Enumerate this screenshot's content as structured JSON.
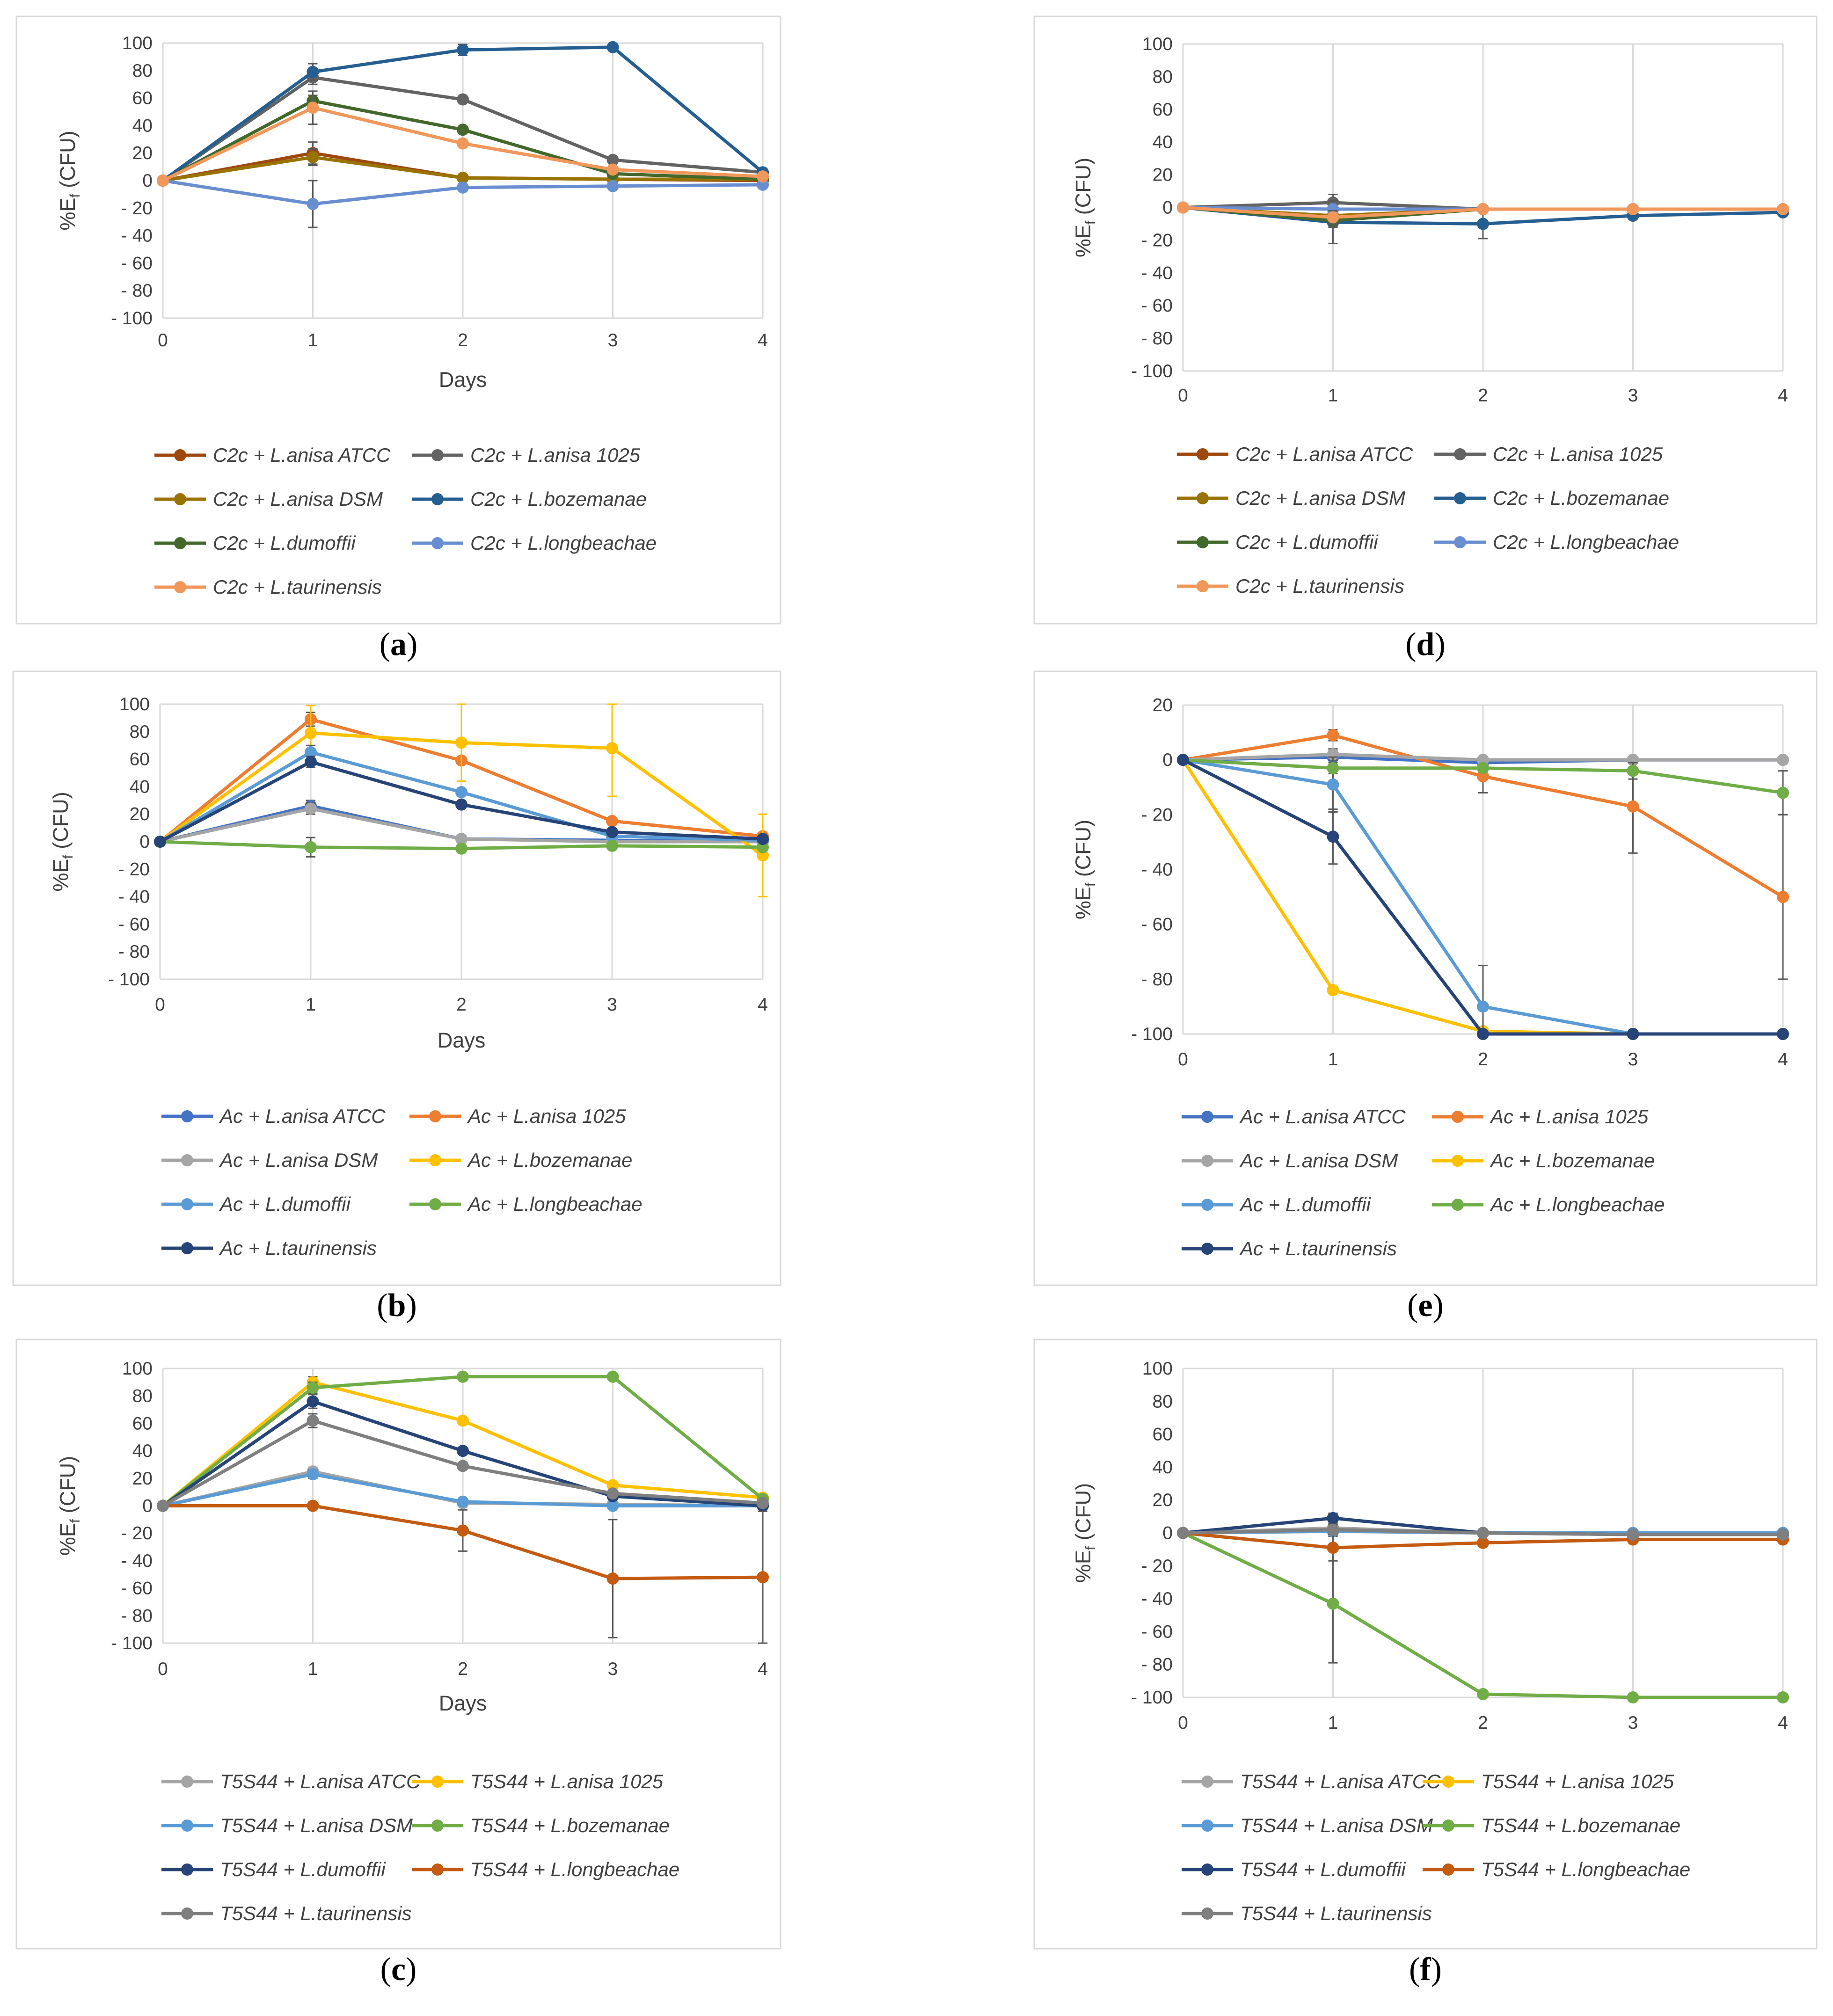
{
  "figure": {
    "days_label": "Days",
    "ylabel_prefix": "%E",
    "ylabel_sub": "f",
    "ylabel_suffix": " (CFU)"
  },
  "chart_data": [
    {
      "id": "a",
      "caption": "a",
      "type": "line",
      "x": [
        0,
        1,
        2,
        3,
        4
      ],
      "xlabel": "Days",
      "ylabel": "%Ef (CFU)",
      "ylim": [
        -100,
        100
      ],
      "yticks": [
        100,
        80,
        60,
        40,
        20,
        0,
        -20,
        -40,
        -60,
        -80,
        -100
      ],
      "grid": "vertical",
      "series": [
        {
          "name": "C2c + L.anisa ATCC",
          "color": "#9E480E",
          "values": [
            0,
            20,
            2,
            1,
            0
          ],
          "errors": [
            0,
            8,
            0,
            0,
            0
          ]
        },
        {
          "name": "C2c + L.anisa 1025",
          "color": "#636363",
          "values": [
            0,
            75,
            59,
            15,
            6
          ],
          "errors": [
            0,
            5,
            0,
            0,
            0
          ]
        },
        {
          "name": "C2c + L.anisa DSM",
          "color": "#997300",
          "values": [
            0,
            17,
            2,
            1,
            1
          ],
          "errors": [
            0,
            6,
            0,
            0,
            0
          ]
        },
        {
          "name": "C2c + L.bozemanae",
          "color": "#255E91",
          "values": [
            0,
            79,
            95,
            97,
            6
          ],
          "errors": [
            0,
            6,
            4,
            0,
            0
          ]
        },
        {
          "name": "C2c + L.dumoffii",
          "color": "#43682B",
          "values": [
            0,
            58,
            37,
            5,
            1
          ],
          "errors": [
            0,
            4,
            0,
            0,
            0
          ]
        },
        {
          "name": "C2c + L.longbeachae",
          "color": "#698ED0",
          "values": [
            0,
            -17,
            -5,
            -4,
            -3
          ],
          "errors": [
            0,
            17,
            0,
            0,
            0
          ]
        },
        {
          "name": "C2c + L.taurinensis",
          "color": "#F1975A",
          "values": [
            0,
            53,
            27,
            8,
            3
          ],
          "errors": [
            0,
            12,
            0,
            0,
            0
          ]
        }
      ]
    },
    {
      "id": "b",
      "caption": "b",
      "type": "line",
      "x": [
        0,
        1,
        2,
        3,
        4
      ],
      "xlabel": "Days",
      "ylabel": "%Ef (CFU)",
      "ylim": [
        -100,
        100
      ],
      "yticks": [
        100,
        80,
        60,
        40,
        20,
        0,
        -20,
        -40,
        -60,
        -80,
        -100
      ],
      "grid": "vertical",
      "series": [
        {
          "name": "Ac + L.anisa ATCC",
          "color": "#4472C4",
          "values": [
            0,
            26,
            2,
            1,
            0
          ],
          "errors": [
            0,
            4,
            0,
            0,
            0
          ]
        },
        {
          "name": "Ac + L.anisa 1025",
          "color": "#ED7D31",
          "values": [
            0,
            89,
            59,
            15,
            4
          ],
          "errors": [
            0,
            5,
            0,
            0,
            0
          ]
        },
        {
          "name": "Ac + L.anisa DSM",
          "color": "#A5A5A5",
          "values": [
            0,
            24,
            2,
            0,
            0
          ],
          "errors": [
            0,
            4,
            0,
            0,
            0
          ]
        },
        {
          "name": "Ac + L.bozemanae",
          "color": "#FFC000",
          "values": [
            0,
            79,
            72,
            68,
            -10
          ],
          "errors": [
            0,
            20,
            28,
            35,
            30
          ]
        },
        {
          "name": "Ac + L.dumoffii",
          "color": "#5B9BD5",
          "values": [
            0,
            65,
            36,
            4,
            1
          ],
          "errors": [
            0,
            5,
            0,
            0,
            0
          ]
        },
        {
          "name": "Ac + L.longbeachae",
          "color": "#70AD47",
          "values": [
            0,
            -4,
            -5,
            -3,
            -4
          ],
          "errors": [
            0,
            7,
            0,
            0,
            0
          ]
        },
        {
          "name": "Ac + L.taurinensis",
          "color": "#264478",
          "values": [
            0,
            58,
            27,
            7,
            2
          ],
          "errors": [
            0,
            4,
            0,
            0,
            0
          ]
        }
      ]
    },
    {
      "id": "c",
      "caption": "c",
      "type": "line",
      "x": [
        0,
        1,
        2,
        3,
        4
      ],
      "xlabel": "Days",
      "ylabel": "%Ef (CFU)",
      "ylim": [
        -100,
        100
      ],
      "yticks": [
        100,
        80,
        60,
        40,
        20,
        0,
        -20,
        -40,
        -60,
        -80,
        -100
      ],
      "grid": "vertical",
      "series": [
        {
          "name": "T5S44 + L.anisa ATCC",
          "color": "#A5A5A5",
          "values": [
            0,
            25,
            2,
            1,
            0
          ],
          "errors": [
            0,
            3,
            0,
            0,
            0
          ]
        },
        {
          "name": "T5S44 + L.anisa 1025",
          "color": "#FFC000",
          "values": [
            0,
            90,
            62,
            15,
            6
          ],
          "errors": [
            0,
            4,
            0,
            0,
            0
          ]
        },
        {
          "name": "T5S44 + L.anisa DSM",
          "color": "#5B9BD5",
          "values": [
            0,
            23,
            3,
            0,
            0
          ],
          "errors": [
            0,
            3,
            0,
            0,
            0
          ]
        },
        {
          "name": "T5S44 + L.bozemanae",
          "color": "#70AD47",
          "values": [
            0,
            86,
            94,
            94,
            5
          ],
          "errors": [
            0,
            4,
            0,
            0,
            0
          ]
        },
        {
          "name": "T5S44 + L.dumoffii",
          "color": "#264478",
          "values": [
            0,
            76,
            40,
            7,
            0
          ],
          "errors": [
            0,
            5,
            0,
            0,
            0
          ]
        },
        {
          "name": "T5S44 + L.longbeachae",
          "color": "#C55A11",
          "values": [
            0,
            0,
            -18,
            -53,
            -52
          ],
          "errors": [
            0,
            0,
            15,
            43,
            48
          ]
        },
        {
          "name": "T5S44 + L.taurinensis",
          "color": "#7F7F7F",
          "values": [
            0,
            62,
            29,
            9,
            2
          ],
          "errors": [
            0,
            5,
            0,
            0,
            0
          ]
        }
      ]
    },
    {
      "id": "d",
      "caption": "d",
      "type": "line",
      "x": [
        0,
        1,
        2,
        3,
        4
      ],
      "xlabel": "",
      "ylabel": "%Ef (CFU)",
      "ylim": [
        -100,
        100
      ],
      "yticks": [
        100,
        80,
        60,
        40,
        20,
        0,
        -20,
        -40,
        -60,
        -80,
        -100
      ],
      "grid": "vertical",
      "series": [
        {
          "name": "C2c + L.anisa ATCC",
          "color": "#9E480E",
          "values": [
            0,
            -7,
            -1,
            -1,
            -1
          ],
          "errors": [
            0,
            5,
            0,
            0,
            0
          ]
        },
        {
          "name": "C2c + L.anisa 1025",
          "color": "#636363",
          "values": [
            0,
            3,
            -1,
            -1,
            -1
          ],
          "errors": [
            0,
            5,
            0,
            0,
            0
          ]
        },
        {
          "name": "C2c + L.anisa DSM",
          "color": "#997300",
          "values": [
            0,
            -5,
            -1,
            -1,
            -1
          ],
          "errors": [
            0,
            5,
            0,
            0,
            0
          ]
        },
        {
          "name": "C2c + L.bozemanae",
          "color": "#255E91",
          "values": [
            0,
            -9,
            -10,
            -5,
            -3
          ],
          "errors": [
            0,
            13,
            9,
            2,
            0
          ]
        },
        {
          "name": "C2c + L.dumoffii",
          "color": "#43682B",
          "values": [
            0,
            -8,
            -1,
            -1,
            -1
          ],
          "errors": [
            0,
            4,
            0,
            0,
            0
          ]
        },
        {
          "name": "C2c + L.longbeachae",
          "color": "#698ED0",
          "values": [
            0,
            -1,
            -1,
            -1,
            -1
          ],
          "errors": [
            0,
            3,
            0,
            0,
            0
          ]
        },
        {
          "name": "C2c + L.taurinensis",
          "color": "#F1975A",
          "values": [
            0,
            -6,
            -1,
            -1,
            -1
          ],
          "errors": [
            0,
            4,
            0,
            0,
            0
          ]
        }
      ]
    },
    {
      "id": "e",
      "caption": "e",
      "type": "line",
      "x": [
        0,
        1,
        2,
        3,
        4
      ],
      "xlabel": "",
      "ylabel": "%Ef (CFU)",
      "ylim": [
        -100,
        20
      ],
      "yticks": [
        20,
        0,
        -20,
        -40,
        -60,
        -80,
        -100
      ],
      "grid": "vertical",
      "series": [
        {
          "name": "Ac + L.anisa ATCC",
          "color": "#4472C4",
          "values": [
            0,
            1,
            -1,
            0,
            0
          ],
          "errors": [
            0,
            2,
            0,
            0,
            0
          ]
        },
        {
          "name": "Ac + L.anisa 1025",
          "color": "#ED7D31",
          "values": [
            0,
            9,
            -6,
            -17,
            -50
          ],
          "errors": [
            0,
            2,
            6,
            17,
            30
          ]
        },
        {
          "name": "Ac + L.anisa DSM",
          "color": "#A5A5A5",
          "values": [
            0,
            2,
            0,
            0,
            0
          ],
          "errors": [
            0,
            2,
            0,
            0,
            0
          ]
        },
        {
          "name": "Ac + L.bozemanae",
          "color": "#FFC000",
          "values": [
            0,
            -84,
            -99,
            -100,
            -100
          ],
          "errors": [
            0,
            0,
            0,
            0,
            0
          ]
        },
        {
          "name": "Ac + L.dumoffii",
          "color": "#5B9BD5",
          "values": [
            0,
            -9,
            -90,
            -100,
            -100
          ],
          "errors": [
            0,
            10,
            15,
            0,
            0
          ]
        },
        {
          "name": "Ac + L.longbeachae",
          "color": "#70AD47",
          "values": [
            0,
            -3,
            -3,
            -4,
            -12
          ],
          "errors": [
            0,
            2,
            0,
            3,
            8
          ]
        },
        {
          "name": "Ac + L.taurinensis",
          "color": "#264478",
          "values": [
            0,
            -28,
            -100,
            -100,
            -100
          ],
          "errors": [
            0,
            10,
            0,
            0,
            0
          ]
        }
      ]
    },
    {
      "id": "f",
      "caption": "f",
      "type": "line",
      "x": [
        0,
        1,
        2,
        3,
        4
      ],
      "xlabel": "",
      "ylabel": "%Ef (CFU)",
      "ylim": [
        -100,
        100
      ],
      "yticks": [
        100,
        80,
        60,
        40,
        20,
        0,
        -20,
        -40,
        -60,
        -80,
        -100
      ],
      "grid": "vertical",
      "series": [
        {
          "name": "T5S44 + L.anisa ATCC",
          "color": "#A5A5A5",
          "values": [
            0,
            3,
            0,
            0,
            0
          ],
          "errors": [
            0,
            3,
            0,
            0,
            0
          ]
        },
        {
          "name": "T5S44 + L.anisa 1025",
          "color": "#FFC000",
          "values": [
            0,
            1,
            0,
            0,
            0
          ],
          "errors": [
            0,
            3,
            0,
            0,
            0
          ]
        },
        {
          "name": "T5S44 + L.anisa DSM",
          "color": "#5B9BD5",
          "values": [
            0,
            1,
            0,
            0,
            0
          ],
          "errors": [
            0,
            3,
            0,
            0,
            0
          ]
        },
        {
          "name": "T5S44 + L.bozemanae",
          "color": "#70AD47",
          "values": [
            0,
            -43,
            -98,
            -100,
            -100
          ],
          "errors": [
            0,
            36,
            0,
            0,
            0
          ]
        },
        {
          "name": "T5S44 + L.dumoffii",
          "color": "#264478",
          "values": [
            0,
            9,
            0,
            -1,
            -1
          ],
          "errors": [
            0,
            3,
            0,
            0,
            0
          ]
        },
        {
          "name": "T5S44 + L.longbeachae",
          "color": "#C55A11",
          "values": [
            0,
            -9,
            -6,
            -4,
            -4
          ],
          "errors": [
            0,
            8,
            2,
            0,
            0
          ]
        },
        {
          "name": "T5S44 + L.taurinensis",
          "color": "#7F7F7F",
          "values": [
            0,
            2,
            0,
            -1,
            -1
          ],
          "errors": [
            0,
            3,
            0,
            0,
            0
          ]
        }
      ]
    }
  ]
}
